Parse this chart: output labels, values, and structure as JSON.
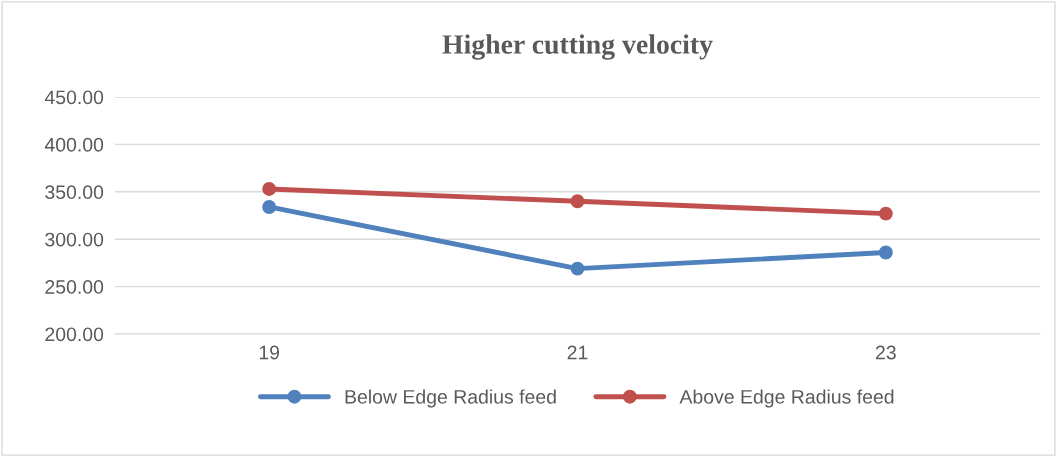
{
  "chart_data": {
    "type": "line",
    "title": "Higher cutting velocity",
    "categories": [
      "19",
      "21",
      "23"
    ],
    "series": [
      {
        "name": "Below Edge Radius feed",
        "color": "#4f81bd",
        "values": [
          334,
          269,
          286
        ]
      },
      {
        "name": "Above Edge Radius feed",
        "color": "#c0504d",
        "values": [
          353,
          340,
          327
        ]
      }
    ],
    "ylim": [
      200,
      450
    ],
    "yticks": [
      {
        "value": 200,
        "label": "200.00"
      },
      {
        "value": 250,
        "label": "250.00"
      },
      {
        "value": 300,
        "label": "300.00"
      },
      {
        "value": 350,
        "label": "350.00"
      },
      {
        "value": 400,
        "label": "400.00"
      },
      {
        "value": 450,
        "label": "450.00"
      }
    ],
    "grid": "y",
    "legend": "bottom",
    "marker": "circle",
    "line_style": "solid"
  }
}
